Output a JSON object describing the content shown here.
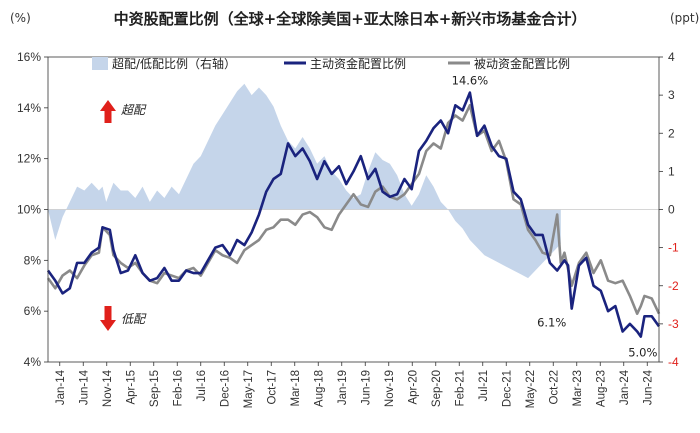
{
  "chart_data": {
    "type": "line",
    "title": "中资股配置比例（全球+全球除美国+亚太除日本+新兴市场基金合计）",
    "y_left_unit": "(%)",
    "y_right_unit": "(ppt)",
    "y_left_range": [
      4,
      16
    ],
    "y_right_range": [
      -4,
      4
    ],
    "y_left_ticks": [
      "4%",
      "6%",
      "8%",
      "10%",
      "12%",
      "14%",
      "16%"
    ],
    "y_right_ticks": [
      "-4",
      "-3",
      "-2",
      "-1",
      "0",
      "1",
      "2",
      "3",
      "4"
    ],
    "x_ticks": [
      "Jan-14",
      "Jun-14",
      "Nov-14",
      "Apr-15",
      "Sep-15",
      "Feb-16",
      "Jul-16",
      "Dec-16",
      "May-17",
      "Oct-17",
      "Mar-18",
      "Aug-18",
      "Jan-19",
      "Jun-19",
      "Nov-19",
      "Apr-20",
      "Sep-20",
      "Feb-21",
      "Jul-21",
      "Dec-21",
      "May-22",
      "Oct-22",
      "Mar-23",
      "Aug-23",
      "Jan-24",
      "Jun-24"
    ],
    "legend": [
      "超配/低配比例（右轴）",
      "主动资金配置比例",
      "被动资金配置比例"
    ],
    "legend_position": "top",
    "colors": {
      "area": "#c5d5ea",
      "active": "#1a237e",
      "passive": "#8a8a8a",
      "up_arrow": "#e0201b",
      "down_arrow": "#e0201b"
    },
    "labels": {
      "overweight": "超配",
      "underweight": "低配"
    },
    "annotations": [
      {
        "text": "14.6%",
        "x": "Sep-20",
        "y": 14.6
      },
      {
        "text": "6.1%",
        "x": "Oct-22",
        "y": 6.1
      },
      {
        "text": "5.0%",
        "x": "Mar-24",
        "y": 5.0
      }
    ],
    "series": [
      {
        "name": "超配/低配比例（右轴）",
        "axis": "right",
        "points": [
          [
            0,
            0
          ],
          [
            2,
            -0.8
          ],
          [
            4,
            -0.2
          ],
          [
            6,
            0.2
          ],
          [
            8,
            0.6
          ],
          [
            10,
            0.5
          ],
          [
            12,
            0.7
          ],
          [
            14,
            0.5
          ],
          [
            15,
            0.6
          ],
          [
            16,
            0.2
          ],
          [
            18,
            0.7
          ],
          [
            20,
            0.5
          ],
          [
            22,
            0.5
          ],
          [
            24,
            0.3
          ],
          [
            26,
            0.6
          ],
          [
            28,
            0.2
          ],
          [
            30,
            0.5
          ],
          [
            32,
            0.3
          ],
          [
            34,
            0.6
          ],
          [
            36,
            0.4
          ],
          [
            38,
            0.8
          ],
          [
            40,
            1.2
          ],
          [
            42,
            1.4
          ],
          [
            44,
            1.8
          ],
          [
            46,
            2.2
          ],
          [
            48,
            2.5
          ],
          [
            50,
            2.8
          ],
          [
            52,
            3.1
          ],
          [
            54,
            3.3
          ],
          [
            56,
            3.0
          ],
          [
            58,
            3.2
          ],
          [
            60,
            3.0
          ],
          [
            62,
            2.7
          ],
          [
            64,
            2.2
          ],
          [
            66,
            1.8
          ],
          [
            68,
            1.6
          ],
          [
            70,
            1.9
          ],
          [
            72,
            1.6
          ],
          [
            74,
            1.2
          ],
          [
            76,
            1.4
          ],
          [
            78,
            1.0
          ],
          [
            80,
            0.8
          ],
          [
            82,
            0.5
          ],
          [
            84,
            0.3
          ],
          [
            86,
            0.4
          ],
          [
            88,
            1.0
          ],
          [
            90,
            1.5
          ],
          [
            92,
            1.3
          ],
          [
            94,
            1.2
          ],
          [
            96,
            0.9
          ],
          [
            98,
            0.4
          ],
          [
            100,
            0.1
          ],
          [
            102,
            0.4
          ],
          [
            104,
            0.9
          ],
          [
            106,
            0.6
          ],
          [
            108,
            0.2
          ],
          [
            110,
            0
          ],
          [
            112,
            -0.3
          ],
          [
            114,
            -0.5
          ],
          [
            116,
            -0.8
          ],
          [
            118,
            -1.0
          ],
          [
            120,
            -1.2
          ],
          [
            122,
            -1.3
          ],
          [
            124,
            -1.4
          ],
          [
            126,
            -1.5
          ],
          [
            128,
            -1.6
          ],
          [
            130,
            -1.7
          ],
          [
            132,
            -1.8
          ],
          [
            134,
            -1.6
          ],
          [
            136,
            -1.4
          ],
          [
            138,
            -1.2
          ],
          [
            140,
            -1.0
          ],
          [
            141,
            -0.9
          ],
          [
            141,
            0
          ]
        ]
      },
      {
        "name": "主动资金配置比例",
        "axis": "left",
        "points": [
          [
            0,
            7.6
          ],
          [
            2,
            7.2
          ],
          [
            4,
            6.7
          ],
          [
            6,
            6.9
          ],
          [
            8,
            7.9
          ],
          [
            10,
            7.9
          ],
          [
            12,
            8.3
          ],
          [
            14,
            8.5
          ],
          [
            15,
            9.3
          ],
          [
            17,
            9.2
          ],
          [
            18,
            8.4
          ],
          [
            20,
            7.5
          ],
          [
            22,
            7.6
          ],
          [
            24,
            8.2
          ],
          [
            26,
            7.5
          ],
          [
            28,
            7.2
          ],
          [
            30,
            7.3
          ],
          [
            32,
            7.7
          ],
          [
            34,
            7.2
          ],
          [
            36,
            7.2
          ],
          [
            38,
            7.6
          ],
          [
            40,
            7.5
          ],
          [
            42,
            7.5
          ],
          [
            44,
            8.0
          ],
          [
            46,
            8.5
          ],
          [
            48,
            8.6
          ],
          [
            50,
            8.2
          ],
          [
            52,
            8.8
          ],
          [
            54,
            8.6
          ],
          [
            56,
            9.1
          ],
          [
            58,
            9.8
          ],
          [
            60,
            10.7
          ],
          [
            62,
            11.2
          ],
          [
            64,
            11.4
          ],
          [
            66,
            12.6
          ],
          [
            68,
            12.1
          ],
          [
            70,
            12.4
          ],
          [
            72,
            11.9
          ],
          [
            74,
            11.2
          ],
          [
            76,
            11.9
          ],
          [
            78,
            11.4
          ],
          [
            80,
            11.7
          ],
          [
            82,
            11.0
          ],
          [
            84,
            11.5
          ],
          [
            86,
            12.1
          ],
          [
            88,
            11.2
          ],
          [
            90,
            11.6
          ],
          [
            92,
            10.7
          ],
          [
            94,
            10.5
          ],
          [
            96,
            10.6
          ],
          [
            98,
            11.2
          ],
          [
            100,
            10.8
          ],
          [
            102,
            12.3
          ],
          [
            104,
            12.7
          ],
          [
            106,
            13.2
          ],
          [
            108,
            13.5
          ],
          [
            110,
            13.0
          ],
          [
            112,
            14.1
          ],
          [
            114,
            13.9
          ],
          [
            116,
            14.6
          ],
          [
            118,
            12.9
          ],
          [
            120,
            13.3
          ],
          [
            122,
            12.5
          ],
          [
            124,
            12.1
          ],
          [
            126,
            12.0
          ],
          [
            128,
            10.7
          ],
          [
            130,
            10.4
          ],
          [
            132,
            9.4
          ],
          [
            134,
            9.0
          ],
          [
            136,
            9.0
          ],
          [
            138,
            7.9
          ],
          [
            140,
            7.6
          ],
          [
            142,
            8.0
          ],
          [
            143,
            7.8
          ],
          [
            144,
            6.1
          ],
          [
            146,
            7.8
          ],
          [
            148,
            8.1
          ],
          [
            150,
            7.0
          ],
          [
            152,
            6.8
          ],
          [
            154,
            6.0
          ],
          [
            156,
            6.2
          ],
          [
            158,
            5.2
          ],
          [
            160,
            5.5
          ],
          [
            162,
            5.2
          ],
          [
            163,
            5.0
          ],
          [
            164,
            5.8
          ],
          [
            166,
            5.8
          ],
          [
            168,
            5.4
          ]
        ]
      },
      {
        "name": "被动资金配置比例",
        "axis": "left",
        "points": [
          [
            0,
            7.3
          ],
          [
            2,
            6.9
          ],
          [
            4,
            7.4
          ],
          [
            6,
            7.6
          ],
          [
            8,
            7.3
          ],
          [
            10,
            7.8
          ],
          [
            12,
            8.2
          ],
          [
            14,
            8.3
          ],
          [
            15,
            9.3
          ],
          [
            17,
            9.0
          ],
          [
            18,
            8.2
          ],
          [
            20,
            7.9
          ],
          [
            22,
            7.7
          ],
          [
            24,
            7.9
          ],
          [
            26,
            7.5
          ],
          [
            28,
            7.2
          ],
          [
            30,
            7.1
          ],
          [
            32,
            7.5
          ],
          [
            34,
            7.4
          ],
          [
            36,
            7.3
          ],
          [
            38,
            7.6
          ],
          [
            40,
            7.7
          ],
          [
            42,
            7.4
          ],
          [
            44,
            7.9
          ],
          [
            46,
            8.4
          ],
          [
            48,
            8.2
          ],
          [
            50,
            8.1
          ],
          [
            52,
            7.9
          ],
          [
            54,
            8.4
          ],
          [
            56,
            8.6
          ],
          [
            58,
            8.8
          ],
          [
            60,
            9.2
          ],
          [
            62,
            9.3
          ],
          [
            64,
            9.6
          ],
          [
            66,
            9.6
          ],
          [
            68,
            9.4
          ],
          [
            70,
            9.8
          ],
          [
            72,
            9.9
          ],
          [
            74,
            9.7
          ],
          [
            76,
            9.3
          ],
          [
            78,
            9.2
          ],
          [
            80,
            9.8
          ],
          [
            82,
            10.2
          ],
          [
            84,
            10.6
          ],
          [
            86,
            10.2
          ],
          [
            88,
            10.1
          ],
          [
            90,
            10.7
          ],
          [
            92,
            10.9
          ],
          [
            94,
            10.5
          ],
          [
            96,
            10.4
          ],
          [
            98,
            10.6
          ],
          [
            100,
            11.0
          ],
          [
            102,
            11.4
          ],
          [
            104,
            12.3
          ],
          [
            106,
            12.6
          ],
          [
            108,
            12.4
          ],
          [
            110,
            13.4
          ],
          [
            112,
            13.7
          ],
          [
            114,
            13.5
          ],
          [
            116,
            14.1
          ],
          [
            118,
            12.9
          ],
          [
            120,
            13.1
          ],
          [
            122,
            12.3
          ],
          [
            124,
            12.7
          ],
          [
            126,
            11.9
          ],
          [
            128,
            10.4
          ],
          [
            130,
            10.2
          ],
          [
            132,
            9.2
          ],
          [
            134,
            8.8
          ],
          [
            136,
            8.3
          ],
          [
            138,
            8.2
          ],
          [
            140,
            9.8
          ],
          [
            141,
            7.9
          ],
          [
            142,
            8.3
          ],
          [
            144,
            7.0
          ],
          [
            146,
            7.9
          ],
          [
            148,
            8.3
          ],
          [
            150,
            7.5
          ],
          [
            152,
            8.0
          ],
          [
            154,
            7.2
          ],
          [
            156,
            7.1
          ],
          [
            158,
            7.2
          ],
          [
            160,
            6.6
          ],
          [
            162,
            5.9
          ],
          [
            163,
            6.2
          ],
          [
            164,
            6.6
          ],
          [
            166,
            6.5
          ],
          [
            168,
            5.9
          ]
        ]
      }
    ]
  }
}
